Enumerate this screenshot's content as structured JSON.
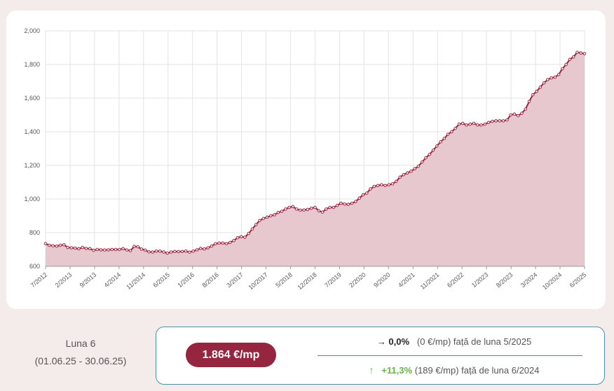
{
  "chart_data": {
    "type": "area",
    "ylim": [
      600,
      2000
    ],
    "y_ticks": [
      "600",
      "800",
      "1,000",
      "1,200",
      "1,400",
      "1,600",
      "1,800",
      "2,000"
    ],
    "x_ticks": [
      "7/2012",
      "2/2013",
      "9/2013",
      "4/2014",
      "11/2014",
      "6/2015",
      "1/2016",
      "8/2016",
      "3/2017",
      "10/2017",
      "5/2018",
      "12/2018",
      "7/2019",
      "2/2020",
      "9/2020",
      "4/2021",
      "11/2021",
      "6/2022",
      "1/2023",
      "8/2023",
      "3/2024",
      "10/2024",
      "6/2025"
    ],
    "grid": true,
    "line_color": "#96253f",
    "fill_color": "#e7c8cf",
    "series": [
      {
        "values": [
          735,
          725,
          722,
          720,
          725,
          728,
          712,
          710,
          708,
          704,
          712,
          706,
          705,
          695,
          700,
          698,
          697,
          698,
          700,
          700,
          700,
          705,
          697,
          693,
          718,
          716,
          702,
          696,
          686,
          685,
          690,
          690,
          685,
          678,
          685,
          688,
          687,
          688,
          690,
          684,
          690,
          698,
          706,
          703,
          710,
          720,
          734,
          738,
          738,
          734,
          742,
          753,
          770,
          776,
          773,
          795,
          822,
          848,
          872,
          884,
          892,
          900,
          906,
          920,
          927,
          940,
          950,
          955,
          940,
          934,
          935,
          938,
          945,
          950,
          930,
          922,
          940,
          950,
          950,
          962,
          975,
          970,
          968,
          975,
          985,
          1005,
          1025,
          1035,
          1060,
          1075,
          1080,
          1085,
          1080,
          1085,
          1090,
          1105,
          1130,
          1145,
          1155,
          1165,
          1180,
          1195,
          1220,
          1245,
          1265,
          1290,
          1315,
          1340,
          1360,
          1385,
          1400,
          1420,
          1445,
          1450,
          1440,
          1445,
          1450,
          1440,
          1440,
          1445,
          1455,
          1462,
          1465,
          1465,
          1465,
          1470,
          1500,
          1505,
          1495,
          1510,
          1535,
          1580,
          1620,
          1640,
          1665,
          1690,
          1710,
          1720,
          1725,
          1740,
          1775,
          1800,
          1830,
          1845,
          1872,
          1868,
          1864
        ]
      }
    ]
  },
  "summary": {
    "month_label": "Luna 6",
    "date_range": "(01.06.25 - 30.06.25)",
    "price": "1.864 €/mp",
    "month_change": {
      "arrow": "→",
      "percent": "0,0%",
      "detail": "(0 €/mp) față de luna 5/2025"
    },
    "year_change": {
      "arrow": "↑",
      "percent": "+11,3%",
      "detail": "(189 €/mp) față de luna 6/2024"
    }
  }
}
